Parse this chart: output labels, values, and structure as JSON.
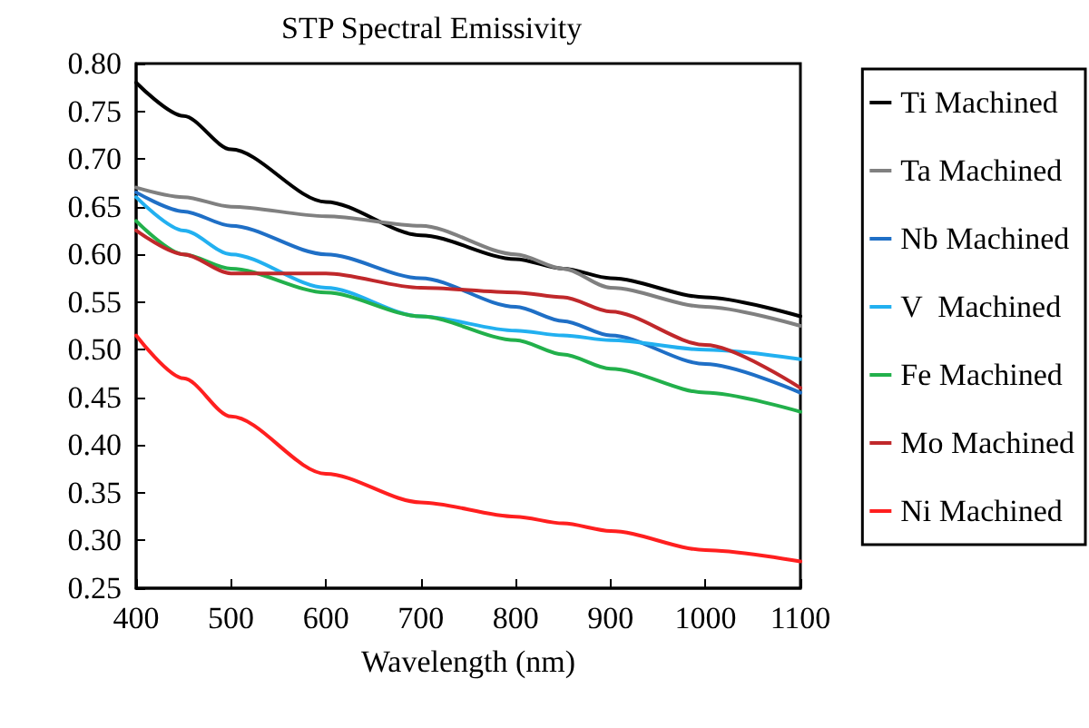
{
  "chart_data": {
    "type": "line",
    "title": "STP Spectral Emissivity",
    "xlabel": "Wavelength (nm)",
    "x": [
      400,
      450,
      500,
      600,
      700,
      800,
      850,
      900,
      1000,
      1100
    ],
    "series": [
      {
        "name": "Ti Machined",
        "color": "#000000",
        "values": [
          0.78,
          0.745,
          0.71,
          0.655,
          0.62,
          0.595,
          0.585,
          0.575,
          0.555,
          0.535
        ]
      },
      {
        "name": "Ta Machined",
        "color": "#808080",
        "values": [
          0.67,
          0.66,
          0.65,
          0.64,
          0.63,
          0.6,
          0.585,
          0.565,
          0.545,
          0.525
        ]
      },
      {
        "name": "Nb Machined",
        "color": "#1f6fc6",
        "values": [
          0.665,
          0.645,
          0.63,
          0.6,
          0.575,
          0.545,
          0.53,
          0.515,
          0.485,
          0.455
        ]
      },
      {
        "name": "V  Machined",
        "color": "#22b0f0",
        "values": [
          0.66,
          0.625,
          0.6,
          0.565,
          0.535,
          0.52,
          0.515,
          0.51,
          0.5,
          0.49
        ]
      },
      {
        "name": "Fe Machined",
        "color": "#22b04b",
        "values": [
          0.635,
          0.6,
          0.585,
          0.56,
          0.535,
          0.51,
          0.495,
          0.48,
          0.455,
          0.435
        ]
      },
      {
        "name": "Mo Machined",
        "color": "#c0282b",
        "values": [
          0.625,
          0.6,
          0.58,
          0.58,
          0.565,
          0.56,
          0.555,
          0.54,
          0.505,
          0.46
        ]
      },
      {
        "name": "Ni Machined",
        "color": "#ff1f1f",
        "values": [
          0.515,
          0.47,
          0.43,
          0.37,
          0.34,
          0.325,
          0.318,
          0.31,
          0.29,
          0.278
        ]
      }
    ],
    "xlim": [
      400,
      1100
    ],
    "xticks": [
      400,
      500,
      600,
      700,
      800,
      900,
      1000,
      1100
    ],
    "ylim": [
      0.25,
      0.8
    ],
    "yticks": [
      {
        "value": 0.25,
        "label": "0.25"
      },
      {
        "value": 0.3,
        "label": "0.30"
      },
      {
        "value": 0.35,
        "label": "0.35"
      },
      {
        "value": 0.4,
        "label": "0.40"
      },
      {
        "value": 0.45,
        "label": "0.45"
      },
      {
        "value": 0.5,
        "label": "0.50"
      },
      {
        "value": 0.55,
        "label": "0.55"
      },
      {
        "value": 0.6,
        "label": "0.60"
      },
      {
        "value": 0.65,
        "label": "0.65"
      },
      {
        "value": 0.7,
        "label": "0.70"
      },
      {
        "value": 0.75,
        "label": "0.75"
      },
      {
        "value": 0.8,
        "label": "0.80"
      }
    ],
    "grid": false,
    "legend": "right",
    "marker": "none",
    "line_style": "solid"
  }
}
